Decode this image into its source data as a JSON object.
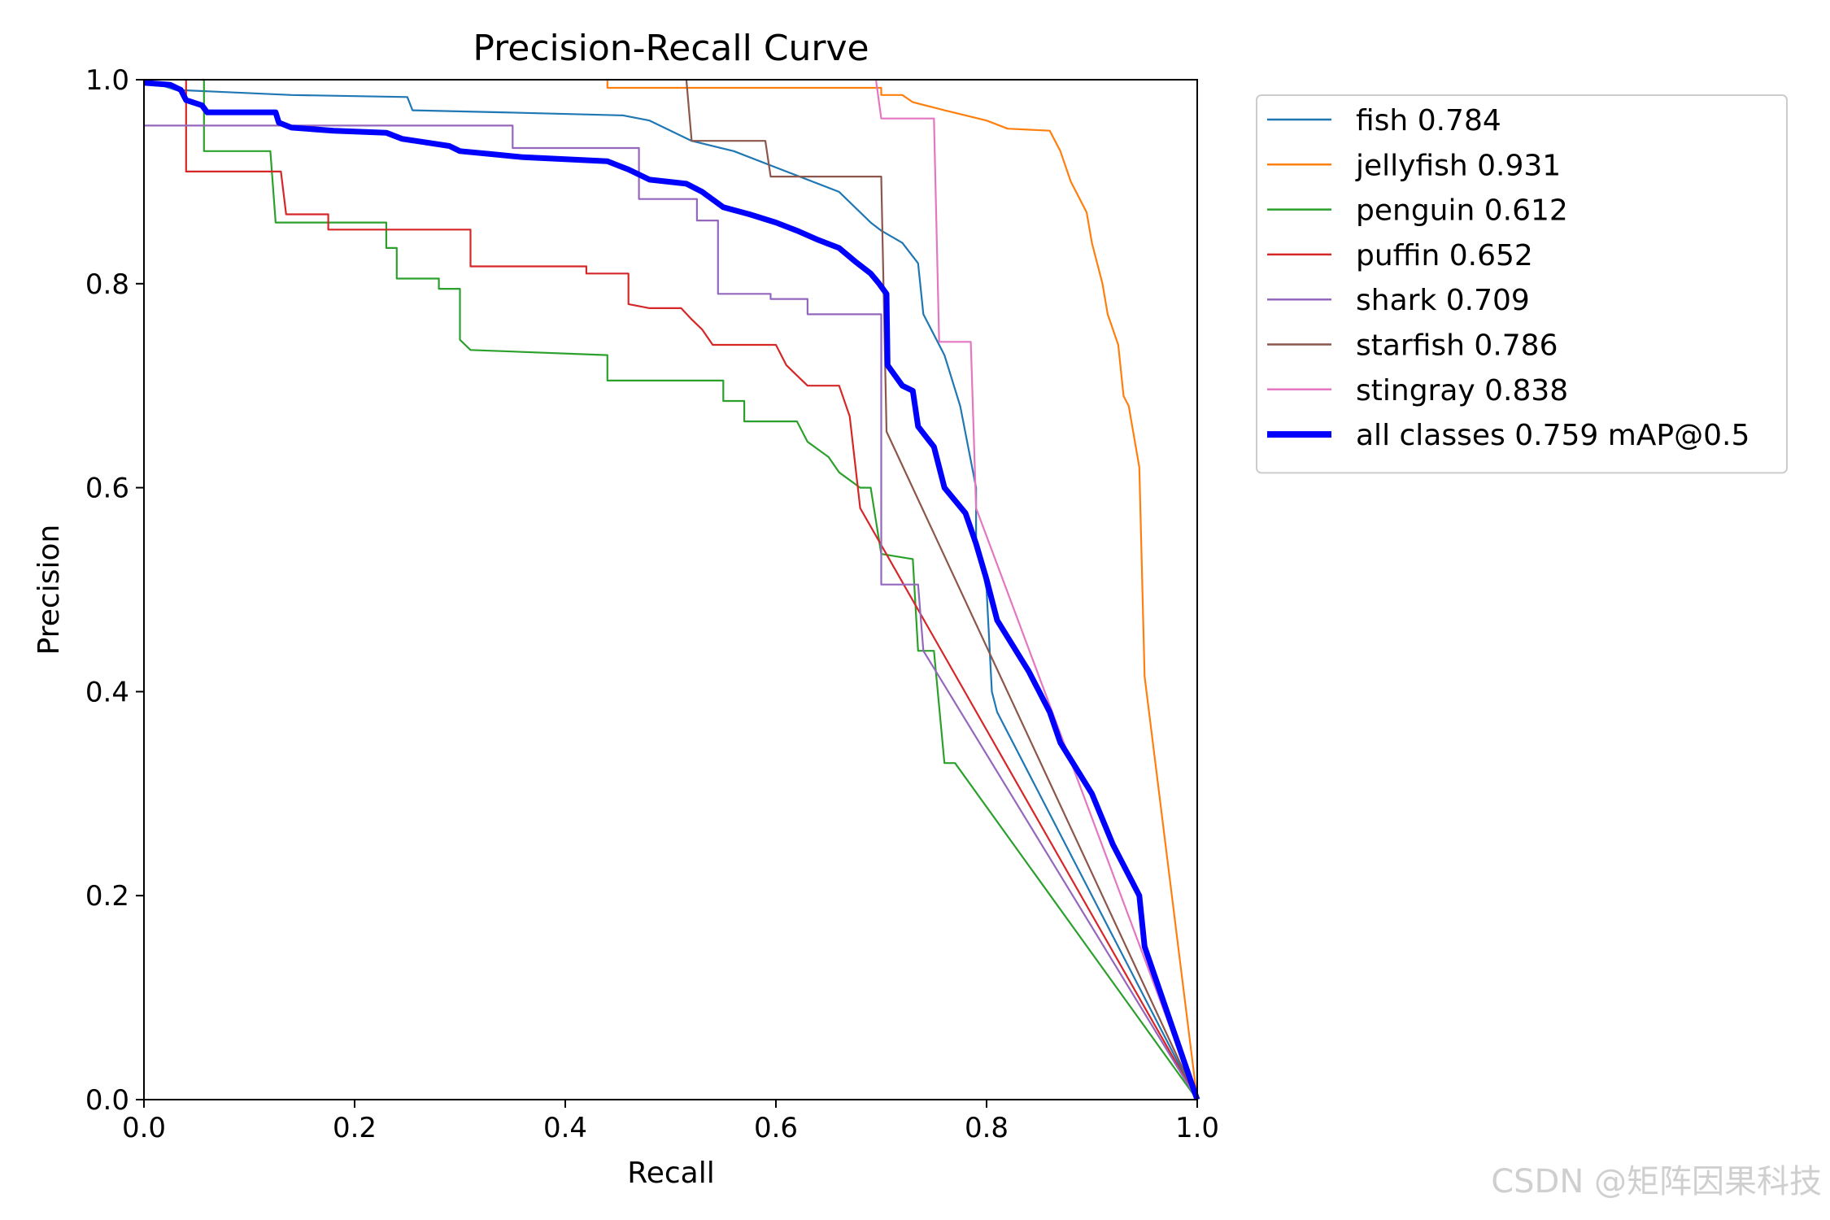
{
  "chart_data": {
    "type": "line",
    "title": "Precision-Recall Curve",
    "xlabel": "Recall",
    "ylabel": "Precision",
    "xlim": [
      0,
      1
    ],
    "ylim": [
      0,
      1
    ],
    "xticks": [
      "0.0",
      "0.2",
      "0.4",
      "0.6",
      "0.8",
      "1.0"
    ],
    "yticks": [
      "0.0",
      "0.2",
      "0.4",
      "0.6",
      "0.8",
      "1.0"
    ],
    "grid": false,
    "legend_position": "outside-top-right",
    "series": [
      {
        "name": "fish 0.784",
        "color": "#1f77b4",
        "width": "thin",
        "points": [
          [
            0,
            1.0
          ],
          [
            0.03,
            0.99
          ],
          [
            0.14,
            0.985
          ],
          [
            0.25,
            0.983
          ],
          [
            0.255,
            0.97
          ],
          [
            0.34,
            0.968
          ],
          [
            0.455,
            0.965
          ],
          [
            0.48,
            0.96
          ],
          [
            0.52,
            0.94
          ],
          [
            0.56,
            0.93
          ],
          [
            0.61,
            0.91
          ],
          [
            0.66,
            0.89
          ],
          [
            0.69,
            0.86
          ],
          [
            0.7,
            0.852
          ],
          [
            0.72,
            0.84
          ],
          [
            0.735,
            0.82
          ],
          [
            0.74,
            0.77
          ],
          [
            0.76,
            0.73
          ],
          [
            0.775,
            0.68
          ],
          [
            0.79,
            0.6
          ],
          [
            0.79,
            0.55
          ],
          [
            0.8,
            0.5
          ],
          [
            0.805,
            0.4
          ],
          [
            0.81,
            0.38
          ],
          [
            1.0,
            0.0
          ]
        ]
      },
      {
        "name": "jellyfish 0.931",
        "color": "#ff7f0e",
        "width": "thin",
        "points": [
          [
            0.44,
            1.0
          ],
          [
            0.44,
            0.992
          ],
          [
            0.7,
            0.992
          ],
          [
            0.7,
            0.985
          ],
          [
            0.72,
            0.985
          ],
          [
            0.73,
            0.978
          ],
          [
            0.76,
            0.97
          ],
          [
            0.8,
            0.96
          ],
          [
            0.82,
            0.952
          ],
          [
            0.86,
            0.95
          ],
          [
            0.87,
            0.93
          ],
          [
            0.88,
            0.9
          ],
          [
            0.895,
            0.87
          ],
          [
            0.9,
            0.84
          ],
          [
            0.91,
            0.8
          ],
          [
            0.915,
            0.77
          ],
          [
            0.925,
            0.74
          ],
          [
            0.93,
            0.69
          ],
          [
            0.935,
            0.68
          ],
          [
            0.945,
            0.62
          ],
          [
            0.95,
            0.415
          ],
          [
            1.0,
            0.0
          ]
        ]
      },
      {
        "name": "penguin 0.612",
        "color": "#2ca02c",
        "width": "thin",
        "points": [
          [
            0.055,
            1.0
          ],
          [
            0.057,
            1.0
          ],
          [
            0.057,
            0.93
          ],
          [
            0.12,
            0.93
          ],
          [
            0.125,
            0.86
          ],
          [
            0.23,
            0.86
          ],
          [
            0.23,
            0.835
          ],
          [
            0.24,
            0.835
          ],
          [
            0.24,
            0.805
          ],
          [
            0.28,
            0.805
          ],
          [
            0.28,
            0.795
          ],
          [
            0.3,
            0.795
          ],
          [
            0.3,
            0.745
          ],
          [
            0.31,
            0.735
          ],
          [
            0.44,
            0.73
          ],
          [
            0.44,
            0.705
          ],
          [
            0.55,
            0.705
          ],
          [
            0.55,
            0.685
          ],
          [
            0.57,
            0.685
          ],
          [
            0.57,
            0.665
          ],
          [
            0.62,
            0.665
          ],
          [
            0.63,
            0.645
          ],
          [
            0.65,
            0.63
          ],
          [
            0.66,
            0.615
          ],
          [
            0.68,
            0.6
          ],
          [
            0.69,
            0.6
          ],
          [
            0.7,
            0.535
          ],
          [
            0.73,
            0.53
          ],
          [
            0.735,
            0.44
          ],
          [
            0.75,
            0.44
          ],
          [
            0.76,
            0.33
          ],
          [
            0.77,
            0.33
          ],
          [
            1.0,
            0.0
          ]
        ]
      },
      {
        "name": "puffin 0.652",
        "color": "#d62728",
        "width": "thin",
        "points": [
          [
            0.04,
            1.0
          ],
          [
            0.04,
            0.91
          ],
          [
            0.13,
            0.91
          ],
          [
            0.135,
            0.868
          ],
          [
            0.175,
            0.868
          ],
          [
            0.175,
            0.853
          ],
          [
            0.31,
            0.853
          ],
          [
            0.31,
            0.817
          ],
          [
            0.42,
            0.817
          ],
          [
            0.42,
            0.81
          ],
          [
            0.46,
            0.81
          ],
          [
            0.46,
            0.78
          ],
          [
            0.48,
            0.776
          ],
          [
            0.51,
            0.776
          ],
          [
            0.52,
            0.765
          ],
          [
            0.53,
            0.755
          ],
          [
            0.54,
            0.74
          ],
          [
            0.6,
            0.74
          ],
          [
            0.61,
            0.72
          ],
          [
            0.62,
            0.71
          ],
          [
            0.63,
            0.7
          ],
          [
            0.66,
            0.7
          ],
          [
            0.67,
            0.67
          ],
          [
            0.68,
            0.58
          ],
          [
            1.0,
            0.0
          ]
        ]
      },
      {
        "name": "shark 0.709",
        "color": "#9467bd",
        "width": "thin",
        "points": [
          [
            0,
            0.955
          ],
          [
            0.35,
            0.955
          ],
          [
            0.35,
            0.933
          ],
          [
            0.47,
            0.933
          ],
          [
            0.47,
            0.883
          ],
          [
            0.525,
            0.883
          ],
          [
            0.525,
            0.862
          ],
          [
            0.545,
            0.862
          ],
          [
            0.545,
            0.79
          ],
          [
            0.595,
            0.79
          ],
          [
            0.595,
            0.785
          ],
          [
            0.63,
            0.785
          ],
          [
            0.63,
            0.77
          ],
          [
            0.7,
            0.77
          ],
          [
            0.7,
            0.505
          ],
          [
            0.735,
            0.505
          ],
          [
            0.74,
            0.44
          ],
          [
            1.0,
            0.0
          ]
        ]
      },
      {
        "name": "starfish 0.786",
        "color": "#8c564b",
        "width": "thin",
        "points": [
          [
            0.515,
            1.0
          ],
          [
            0.52,
            0.94
          ],
          [
            0.59,
            0.94
          ],
          [
            0.595,
            0.905
          ],
          [
            0.7,
            0.905
          ],
          [
            0.705,
            0.655
          ],
          [
            1.0,
            0.0
          ]
        ]
      },
      {
        "name": "stingray 0.838",
        "color": "#e377c2",
        "width": "thin",
        "points": [
          [
            0.695,
            1.0
          ],
          [
            0.7,
            0.962
          ],
          [
            0.75,
            0.962
          ],
          [
            0.755,
            0.743
          ],
          [
            0.785,
            0.743
          ],
          [
            0.79,
            0.58
          ],
          [
            1.0,
            0.0
          ]
        ]
      },
      {
        "name": "all classes 0.759 mAP@0.5",
        "color": "#0000ff",
        "width": "thick",
        "points": [
          [
            0,
            0.997
          ],
          [
            0.025,
            0.995
          ],
          [
            0.035,
            0.99
          ],
          [
            0.04,
            0.98
          ],
          [
            0.055,
            0.975
          ],
          [
            0.06,
            0.968
          ],
          [
            0.125,
            0.968
          ],
          [
            0.128,
            0.958
          ],
          [
            0.14,
            0.953
          ],
          [
            0.18,
            0.95
          ],
          [
            0.23,
            0.948
          ],
          [
            0.245,
            0.942
          ],
          [
            0.29,
            0.935
          ],
          [
            0.3,
            0.93
          ],
          [
            0.33,
            0.927
          ],
          [
            0.36,
            0.924
          ],
          [
            0.44,
            0.92
          ],
          [
            0.46,
            0.912
          ],
          [
            0.48,
            0.902
          ],
          [
            0.515,
            0.898
          ],
          [
            0.53,
            0.89
          ],
          [
            0.55,
            0.875
          ],
          [
            0.575,
            0.868
          ],
          [
            0.6,
            0.86
          ],
          [
            0.62,
            0.852
          ],
          [
            0.64,
            0.843
          ],
          [
            0.66,
            0.835
          ],
          [
            0.675,
            0.822
          ],
          [
            0.69,
            0.81
          ],
          [
            0.698,
            0.8
          ],
          [
            0.705,
            0.79
          ],
          [
            0.706,
            0.72
          ],
          [
            0.72,
            0.7
          ],
          [
            0.73,
            0.695
          ],
          [
            0.735,
            0.66
          ],
          [
            0.75,
            0.64
          ],
          [
            0.76,
            0.6
          ],
          [
            0.78,
            0.575
          ],
          [
            0.79,
            0.545
          ],
          [
            0.8,
            0.51
          ],
          [
            0.81,
            0.47
          ],
          [
            0.84,
            0.42
          ],
          [
            0.86,
            0.38
          ],
          [
            0.87,
            0.35
          ],
          [
            0.9,
            0.3
          ],
          [
            0.92,
            0.25
          ],
          [
            0.945,
            0.2
          ],
          [
            0.95,
            0.15
          ],
          [
            1.0,
            0.0
          ]
        ]
      }
    ]
  },
  "watermark": "CSDN @矩阵因果科技"
}
